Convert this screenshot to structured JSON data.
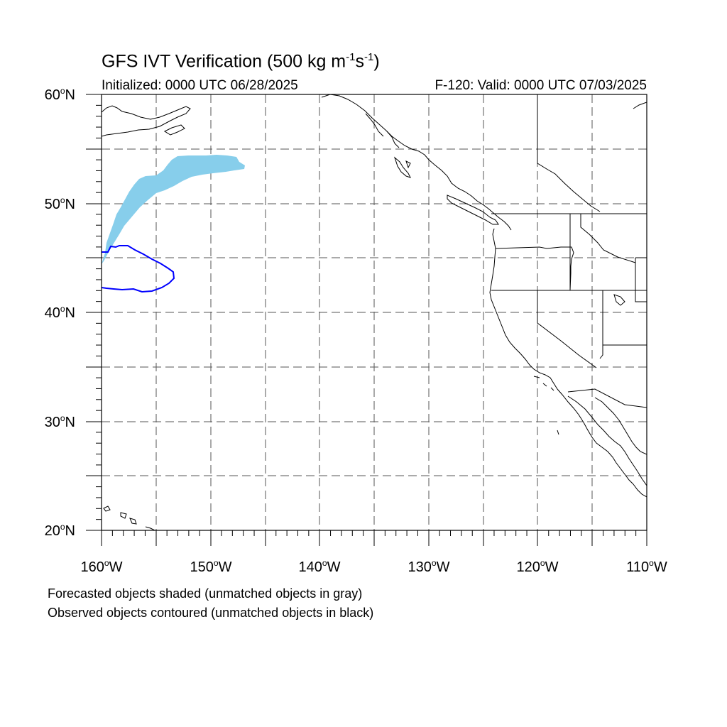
{
  "title": {
    "prefix": "GFS IVT Verification (500 kg m",
    "exp1": "-1",
    "mid": "s",
    "exp2": "-1",
    "suffix": ")"
  },
  "initialized": "Initialized: 0000 UTC 06/28/2025",
  "valid": "F-120: Valid: 0000 UTC 07/03/2025",
  "footnote1": "Forecasted objects shaded (unmatched objects in gray)",
  "footnote2": "Observed objects contoured (unmatched objects in black)",
  "map": {
    "lon_range": [
      -160,
      -110
    ],
    "lat_range": [
      20,
      60
    ],
    "grid": "dashed every 5 degrees",
    "lat_labels": [
      {
        "value": 60,
        "deg": "60",
        "hemi": "N"
      },
      {
        "value": 50,
        "deg": "50",
        "hemi": "N"
      },
      {
        "value": 40,
        "deg": "40",
        "hemi": "N"
      },
      {
        "value": 30,
        "deg": "30",
        "hemi": "N"
      },
      {
        "value": 20,
        "deg": "20",
        "hemi": "N"
      }
    ],
    "lon_labels": [
      {
        "value": -160,
        "deg": "160",
        "hemi": "W"
      },
      {
        "value": -150,
        "deg": "150",
        "hemi": "W"
      },
      {
        "value": -140,
        "deg": "140",
        "hemi": "W"
      },
      {
        "value": -130,
        "deg": "130",
        "hemi": "W"
      },
      {
        "value": -120,
        "deg": "120",
        "hemi": "W"
      },
      {
        "value": -110,
        "deg": "110",
        "hemi": "W"
      }
    ],
    "forecast_object_color": "#87ceeb",
    "observed_contour_color": "#0000ff",
    "coastline_color": "#000000"
  }
}
